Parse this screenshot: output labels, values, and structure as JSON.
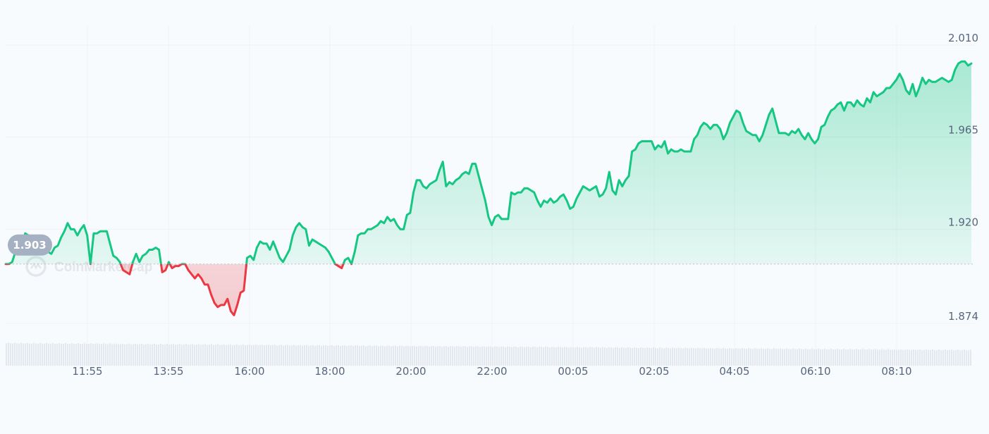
{
  "chart_data": {
    "type": "line",
    "watermark": "CoinMarketCap",
    "reference_value": 1.903,
    "reference_label": "1.903",
    "ylim": [
      1.859,
      2.018
    ],
    "y_ticks": [
      {
        "value": 2.01,
        "label": "2.010"
      },
      {
        "value": 1.965,
        "label": "1.965"
      },
      {
        "value": 1.92,
        "label": "1.920"
      },
      {
        "value": 1.874,
        "label": "1.874"
      }
    ],
    "x_ticks": [
      "11:55",
      "13:55",
      "16:00",
      "18:00",
      "20:00",
      "22:00",
      "00:05",
      "02:05",
      "04:05",
      "06:10",
      "08:10"
    ],
    "colors": {
      "up": "#16c784",
      "down": "#ea3943",
      "grid": "#eff2f5",
      "label": "#58667e",
      "ref_pill": "#a6b0c3",
      "volume": "#e3e7ee"
    },
    "grid": true,
    "series": [
      {
        "values": [
          1.903,
          1.903,
          1.904,
          1.909,
          1.91,
          1.912,
          1.918,
          1.917,
          1.914,
          1.91,
          1.91,
          1.909,
          1.909,
          1.909,
          1.908,
          1.911,
          1.912,
          1.916,
          1.919,
          1.923,
          1.92,
          1.92,
          1.917,
          1.92,
          1.922,
          1.917,
          1.903,
          1.918,
          1.918,
          1.919,
          1.919,
          1.919,
          1.913,
          1.907,
          1.906,
          1.904,
          1.9,
          1.899,
          1.898,
          1.904,
          1.908,
          1.904,
          1.907,
          1.908,
          1.91,
          1.91,
          1.911,
          1.91,
          1.899,
          1.9,
          1.904,
          1.901,
          1.902,
          1.902,
          1.903,
          1.903,
          1.9,
          1.898,
          1.896,
          1.898,
          1.896,
          1.893,
          1.893,
          1.888,
          1.884,
          1.882,
          1.883,
          1.883,
          1.886,
          1.88,
          1.878,
          1.883,
          1.889,
          1.89,
          1.906,
          1.907,
          1.905,
          1.911,
          1.914,
          1.913,
          1.913,
          1.91,
          1.914,
          1.91,
          1.906,
          1.904,
          1.907,
          1.91,
          1.917,
          1.921,
          1.923,
          1.921,
          1.92,
          1.912,
          1.915,
          1.914,
          1.913,
          1.912,
          1.911,
          1.909,
          1.906,
          1.903,
          1.902,
          1.901,
          1.905,
          1.906,
          1.903,
          1.909,
          1.917,
          1.918,
          1.918,
          1.92,
          1.92,
          1.921,
          1.922,
          1.924,
          1.923,
          1.926,
          1.924,
          1.925,
          1.922,
          1.92,
          1.92,
          1.927,
          1.928,
          1.938,
          1.944,
          1.944,
          1.941,
          1.94,
          1.942,
          1.943,
          1.944,
          1.949,
          1.953,
          1.941,
          1.943,
          1.942,
          1.944,
          1.945,
          1.947,
          1.948,
          1.947,
          1.952,
          1.952,
          1.946,
          1.94,
          1.934,
          1.926,
          1.922,
          1.926,
          1.927,
          1.925,
          1.925,
          1.925,
          1.938,
          1.937,
          1.938,
          1.938,
          1.94,
          1.94,
          1.939,
          1.938,
          1.934,
          1.931,
          1.934,
          1.933,
          1.935,
          1.933,
          1.934,
          1.936,
          1.937,
          1.934,
          1.93,
          1.931,
          1.935,
          1.938,
          1.941,
          1.94,
          1.939,
          1.94,
          1.941,
          1.936,
          1.937,
          1.94,
          1.948,
          1.939,
          1.937,
          1.944,
          1.941,
          1.944,
          1.946,
          1.958,
          1.959,
          1.962,
          1.963,
          1.963,
          1.963,
          1.963,
          1.959,
          1.961,
          1.96,
          1.963,
          1.957,
          1.959,
          1.958,
          1.958,
          1.959,
          1.958,
          1.958,
          1.958,
          1.964,
          1.966,
          1.97,
          1.972,
          1.971,
          1.969,
          1.971,
          1.971,
          1.969,
          1.964,
          1.967,
          1.972,
          1.975,
          1.978,
          1.977,
          1.972,
          1.968,
          1.967,
          1.966,
          1.966,
          1.963,
          1.966,
          1.971,
          1.976,
          1.979,
          1.973,
          1.967,
          1.967,
          1.967,
          1.966,
          1.968,
          1.967,
          1.969,
          1.966,
          1.964,
          1.967,
          1.964,
          1.962,
          1.964,
          1.97,
          1.971,
          1.975,
          1.978,
          1.979,
          1.981,
          1.982,
          1.978,
          1.982,
          1.982,
          1.98,
          1.983,
          1.981,
          1.98,
          1.984,
          1.982,
          1.987,
          1.985,
          1.986,
          1.987,
          1.989,
          1.989,
          1.991,
          1.993,
          1.996,
          1.993,
          1.988,
          1.986,
          1.991,
          1.985,
          1.989,
          1.994,
          1.991,
          1.993,
          1.992,
          1.992,
          1.993,
          1.994,
          1.993,
          1.992,
          1.993,
          1.998,
          2.001,
          2.002,
          2.002,
          2.0,
          2.001
        ]
      }
    ]
  }
}
